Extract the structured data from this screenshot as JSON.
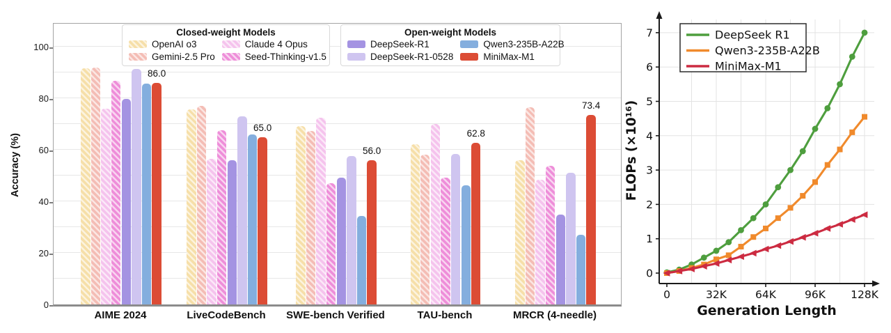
{
  "chart_data": [
    {
      "type": "bar",
      "title": "",
      "xlabel": "",
      "ylabel": "Accuracy (%)",
      "ylim": [
        0,
        108
      ],
      "yticks": [
        0,
        20,
        40,
        60,
        80,
        100
      ],
      "grid": "horizontal-faint",
      "categories": [
        "AIME 2024",
        "LiveCodeBench",
        "SWE-bench Verified",
        "TAU-bench",
        "MRCR (4-needle)"
      ],
      "legend_groups": [
        {
          "title": "Closed-weight Models",
          "items": [
            "OpenAI o3",
            "Claude 4 Opus",
            "Gemini-2.5 Pro",
            "Seed-Thinking-v1.5"
          ]
        },
        {
          "title": "Open-weight Models",
          "items": [
            "DeepSeek-R1",
            "Qwen3-235B-A22B",
            "DeepSeek-R1-0528",
            "MiniMax-M1"
          ]
        }
      ],
      "series": [
        {
          "name": "OpenAI o3",
          "color": "#f6dfa9",
          "hatch": true,
          "values": [
            91.6,
            75.8,
            69.1,
            62.3,
            56.0
          ]
        },
        {
          "name": "Gemini-2.5 Pro",
          "color": "#f4bdb5",
          "hatch": true,
          "values": [
            92.0,
            77.1,
            67.2,
            58.2,
            76.5
          ]
        },
        {
          "name": "Claude 4 Opus",
          "color": "#f5c3ed",
          "hatch": true,
          "values": [
            76.0,
            56.6,
            72.5,
            69.9,
            48.5
          ]
        },
        {
          "name": "Seed-Thinking-v1.5",
          "color": "#ee8ed9",
          "hatch": true,
          "values": [
            86.7,
            67.5,
            47.0,
            49.1,
            53.8
          ]
        },
        {
          "name": "DeepSeek-R1",
          "color": "#a493e2",
          "hatch": false,
          "values": [
            79.8,
            55.9,
            49.2,
            null,
            35.0
          ]
        },
        {
          "name": "DeepSeek-R1-0528",
          "color": "#cfc5f0",
          "hatch": false,
          "values": [
            91.4,
            73.1,
            57.6,
            58.3,
            51.0
          ]
        },
        {
          "name": "Qwen3-235B-A22B",
          "color": "#84aede",
          "hatch": false,
          "values": [
            85.7,
            65.9,
            34.4,
            46.2,
            27.0
          ]
        },
        {
          "name": "MiniMax-M1",
          "color": "#dc4c35",
          "hatch": false,
          "values": [
            86.0,
            65.0,
            56.0,
            62.8,
            73.4
          ]
        }
      ],
      "value_labels": [
        "86.0",
        "65.0",
        "56.0",
        "62.8",
        "73.4"
      ],
      "value_label_series": "MiniMax-M1"
    },
    {
      "type": "line",
      "title": "",
      "xlabel": "Generation Length",
      "ylabel": "FLOPs (×10¹⁶)",
      "x_unit": "K tokens",
      "x": [
        0,
        8,
        16,
        24,
        32,
        40,
        48,
        56,
        64,
        72,
        80,
        88,
        96,
        104,
        112,
        120,
        128
      ],
      "xticks": [
        0,
        32,
        64,
        96,
        128
      ],
      "xtick_labels": [
        "0",
        "32K",
        "64K",
        "96K",
        "128K"
      ],
      "yticks": [
        0,
        1,
        2,
        3,
        4,
        5,
        6,
        7
      ],
      "ylim": [
        0,
        7.4
      ],
      "grid": "on",
      "legend_position": "upper-left",
      "series": [
        {
          "name": "DeepSeek R1",
          "color": "#4e9e3e",
          "marker": "circle",
          "values": [
            0.02,
            0.1,
            0.25,
            0.45,
            0.65,
            0.9,
            1.25,
            1.6,
            2.0,
            2.5,
            3.0,
            3.55,
            4.2,
            4.8,
            5.5,
            6.3,
            7.0
          ]
        },
        {
          "name": "Qwen3-235B-A22B",
          "color": "#f08a2c",
          "marker": "square",
          "values": [
            0.0,
            0.06,
            0.15,
            0.25,
            0.4,
            0.52,
            0.77,
            1.05,
            1.3,
            1.6,
            1.9,
            2.25,
            2.65,
            3.15,
            3.6,
            4.1,
            4.55
          ]
        },
        {
          "name": "MiniMax-M1",
          "color": "#cc2b41",
          "marker": "triangle-left",
          "values": [
            0.0,
            0.06,
            0.12,
            0.2,
            0.28,
            0.38,
            0.48,
            0.58,
            0.7,
            0.8,
            0.92,
            1.04,
            1.16,
            1.3,
            1.42,
            1.56,
            1.7
          ]
        }
      ]
    }
  ]
}
